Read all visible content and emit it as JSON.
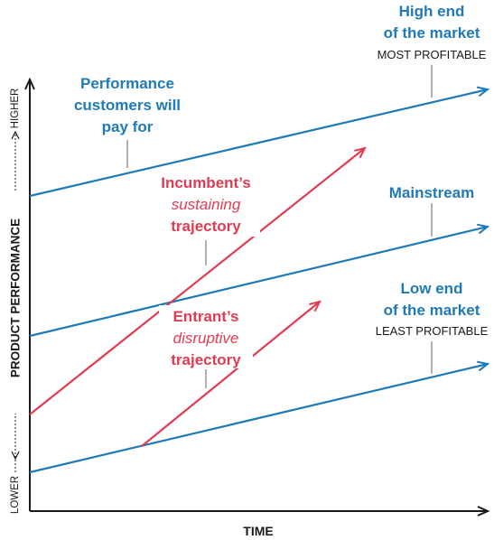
{
  "colors": {
    "blue": "#1f7ab8",
    "red": "#e13b52",
    "axis": "#1a1a1a",
    "connector": "#666666"
  },
  "axes": {
    "y_label": "PRODUCT PERFORMANCE",
    "y_low": "LOWER",
    "y_high": "HIGHER",
    "x_label": "TIME"
  },
  "labels": {
    "performance_line1": "Performance",
    "performance_line2": "customers will",
    "performance_line3": "pay for",
    "high_line1": "High end",
    "high_line2": "of the market",
    "high_line3": "MOST PROFITABLE",
    "mainstream": "Mainstream",
    "low_line1": "Low end",
    "low_line2": "of the market",
    "low_line3": "LEAST PROFITABLE",
    "incumbent_line1": "Incumbent’s",
    "incumbent_line2": "sustaining",
    "incumbent_line3": "trajectory",
    "entrant_line1": "Entrant’s",
    "entrant_line2": "disruptive",
    "entrant_line3": "trajectory"
  }
}
